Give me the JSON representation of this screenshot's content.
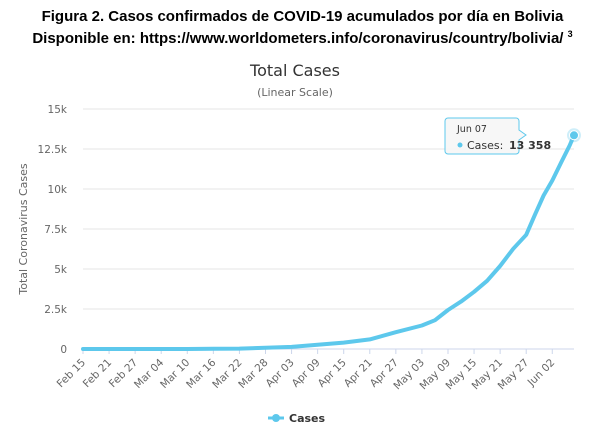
{
  "figure": {
    "caption_line1": "Figura 2. Casos confirmados de COVID-19 acumulados por día en Bolivia",
    "caption_line2": "Disponible en: https://www.worldometers.info/coronavirus/country/bolivia/",
    "caption_ref": "3"
  },
  "colors": {
    "series": "#5dc8ec",
    "grid": "#e6e6e6",
    "axis": "#ccd6eb"
  },
  "tooltip": {
    "date": "Jun 07",
    "label": "Cases:",
    "value": "13 358"
  },
  "chart_data": {
    "type": "line",
    "title": "Total Cases",
    "subtitle": "(Linear Scale)",
    "ylabel": "Total Coronavirus Cases",
    "xlabel": "",
    "ylim": [
      0,
      15000
    ],
    "yticks": [
      0,
      2500,
      5000,
      7500,
      10000,
      12500,
      15000
    ],
    "ytick_labels": [
      "0",
      "2.5k",
      "5k",
      "7.5k",
      "10k",
      "12.5k",
      "15k"
    ],
    "x_tick_labels": [
      "Feb 15",
      "Feb 21",
      "Feb 27",
      "Mar 04",
      "Mar 10",
      "Mar 16",
      "Mar 22",
      "Mar 28",
      "Apr 03",
      "Apr 09",
      "Apr 15",
      "Apr 21",
      "Apr 27",
      "May 03",
      "May 09",
      "May 15",
      "May 21",
      "May 27",
      "Jun 02"
    ],
    "grid": true,
    "legend": "bottom-center",
    "series": [
      {
        "name": "Cases",
        "x": [
          "Feb 15",
          "Feb 21",
          "Feb 27",
          "Mar 04",
          "Mar 10",
          "Mar 16",
          "Mar 22",
          "Mar 28",
          "Apr 03",
          "Apr 09",
          "Apr 15",
          "Apr 21",
          "Apr 27",
          "May 03",
          "May 06",
          "May 09",
          "May 12",
          "May 15",
          "May 18",
          "May 21",
          "May 24",
          "May 27",
          "May 29",
          "May 31",
          "Jun 02",
          "Jun 04",
          "Jun 06",
          "Jun 07"
        ],
        "values": [
          0,
          0,
          0,
          0,
          0,
          11,
          27,
          74,
          132,
          268,
          397,
          598,
          1053,
          1470,
          1802,
          2437,
          2964,
          3577,
          4263,
          5187,
          6263,
          7136,
          8387,
          9592,
          10531,
          11638,
          12728,
          13358
        ]
      }
    ]
  }
}
